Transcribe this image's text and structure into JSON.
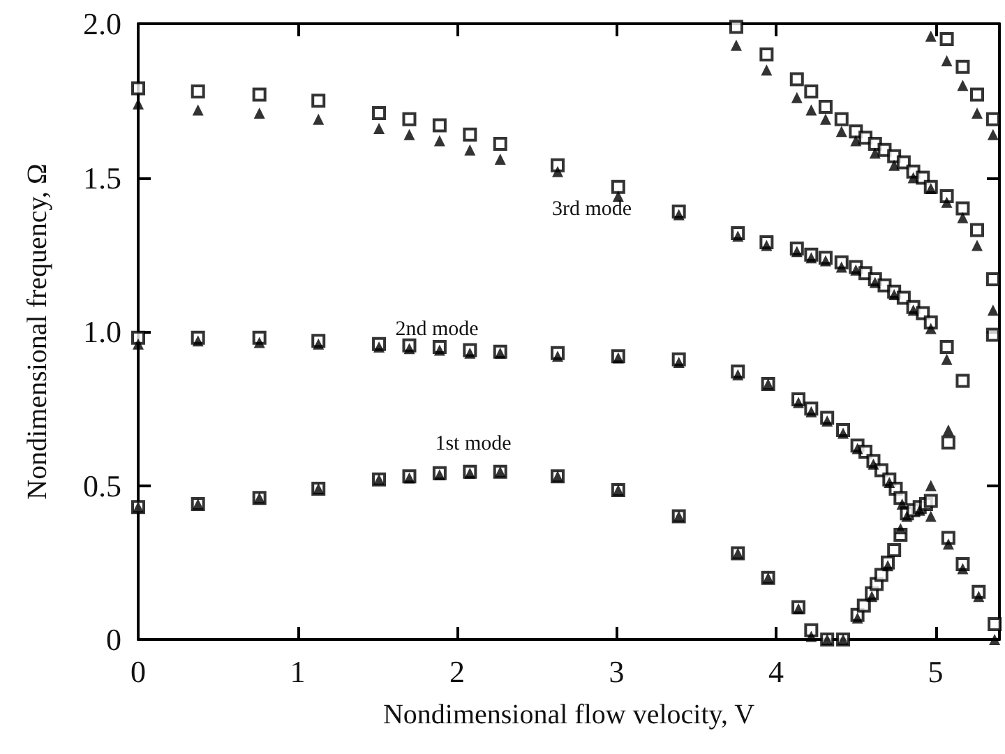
{
  "chart_data": {
    "type": "scatter",
    "xlabel": "Nondimensional flow velocity, V",
    "ylabel": "Nondimensional frequency, Ω",
    "xlim": [
      0,
      5.4
    ],
    "xticks": [
      0,
      1,
      2,
      3,
      4,
      5
    ],
    "ylim": [
      0,
      2
    ],
    "yticks": [
      0,
      {
        "value": 0.5,
        "label": "0.5"
      },
      {
        "value": 1,
        "label": "1.0"
      },
      {
        "value": 1.5,
        "label": "1.5"
      },
      {
        "value": 2,
        "label": "2.0"
      }
    ],
    "grid": false,
    "annotations": [
      "3rd mode",
      "2nd mode",
      "1st mode"
    ],
    "series": [
      {
        "color": "#000000",
        "marker": "square",
        "x": [
          0,
          0.375,
          0.76,
          1.13,
          1.51,
          1.7,
          1.89,
          2.08,
          2.27,
          2.63,
          3.01,
          3.39,
          3.76,
          3.94,
          4.13,
          4.22,
          4.31,
          4.41,
          4.5,
          4.56,
          4.62,
          4.68,
          4.74,
          4.8,
          4.86,
          4.92,
          4.97,
          5.07,
          5.17,
          5.36,
          0,
          0.375,
          0.76,
          1.13,
          1.51,
          1.7,
          1.89,
          2.08,
          2.27,
          2.63,
          3.01,
          3.39,
          3.76,
          3.95,
          4.14,
          4.22,
          4.32,
          4.42,
          4.51,
          4.56,
          4.61,
          4.66,
          4.71,
          4.75,
          4.78,
          0,
          0.375,
          0.76,
          1.13,
          1.51,
          1.7,
          1.89,
          2.08,
          2.27,
          2.63,
          3.01,
          3.39,
          3.76,
          3.95,
          4.14,
          4.22,
          4.32,
          4.42,
          4.51,
          4.55,
          4.6,
          4.63,
          4.66,
          4.7,
          4.74,
          4.78,
          4.82,
          4.86,
          4.9,
          4.94,
          4.97,
          5.08,
          5.08,
          5.17,
          5.27,
          5.37,
          3.75,
          3.94,
          4.13,
          4.22,
          4.31,
          4.41,
          4.5,
          4.56,
          4.62,
          4.68,
          4.74,
          4.8,
          4.86,
          4.92,
          4.97,
          5.07,
          5.17,
          5.26,
          5.36,
          5.07,
          5.17,
          5.26,
          5.36
        ],
        "values": [
          1.79,
          1.78,
          1.77,
          1.75,
          1.71,
          1.69,
          1.67,
          1.64,
          1.61,
          1.54,
          1.47,
          1.39,
          1.32,
          1.29,
          1.27,
          1.25,
          1.24,
          1.225,
          1.21,
          1.19,
          1.17,
          1.15,
          1.13,
          1.11,
          1.08,
          1.06,
          1.03,
          0.95,
          0.84,
          0.99,
          0.98,
          0.98,
          0.98,
          0.97,
          0.96,
          0.955,
          0.95,
          0.94,
          0.935,
          0.93,
          0.92,
          0.91,
          0.87,
          0.83,
          0.78,
          0.75,
          0.72,
          0.68,
          0.63,
          0.61,
          0.58,
          0.55,
          0.52,
          0.49,
          0.46,
          0.43,
          0.44,
          0.46,
          0.49,
          0.52,
          0.53,
          0.54,
          0.545,
          0.545,
          0.53,
          0.485,
          0.4,
          0.28,
          0.2,
          0.105,
          0.03,
          0,
          0,
          0.08,
          0.11,
          0.15,
          0.18,
          0.21,
          0.25,
          0.29,
          0.34,
          0.41,
          0.42,
          0.43,
          0.44,
          0.45,
          0.64,
          0.33,
          0.245,
          0.155,
          0.05,
          1.99,
          1.9,
          1.82,
          1.78,
          1.73,
          1.69,
          1.65,
          1.63,
          1.61,
          1.59,
          1.57,
          1.55,
          1.52,
          1.5,
          1.47,
          1.44,
          1.4,
          1.33,
          1.17,
          1.95,
          1.86,
          1.77,
          1.69
        ]
      },
      {
        "color": "#000000",
        "marker": "triangle",
        "x": [
          0,
          0.375,
          0.76,
          1.13,
          1.51,
          1.7,
          1.89,
          2.08,
          2.27,
          2.63,
          3.01,
          3.39,
          3.76,
          3.94,
          4.13,
          4.22,
          4.31,
          4.41,
          4.5,
          4.62,
          4.74,
          4.86,
          4.97,
          5.07,
          0,
          0.375,
          0.76,
          1.13,
          1.51,
          1.7,
          1.89,
          2.08,
          2.27,
          2.63,
          3.01,
          3.39,
          3.76,
          3.95,
          4.14,
          4.22,
          4.32,
          4.42,
          4.51,
          4.61,
          4.71,
          4.79,
          0,
          0.375,
          0.76,
          1.13,
          1.51,
          1.7,
          1.89,
          2.08,
          2.27,
          2.63,
          3.01,
          3.39,
          3.76,
          3.95,
          4.14,
          4.22,
          4.32,
          4.42,
          4.51,
          4.6,
          4.7,
          4.78,
          4.82,
          4.9,
          4.97,
          4.97,
          5.08,
          5.08,
          5.17,
          5.27,
          5.37,
          3.75,
          3.94,
          4.13,
          4.22,
          4.31,
          4.41,
          4.5,
          4.62,
          4.74,
          4.86,
          4.97,
          5.07,
          5.17,
          5.26,
          5.36,
          4.97,
          5.07,
          5.17,
          5.26,
          5.36
        ],
        "values": [
          1.74,
          1.72,
          1.71,
          1.69,
          1.66,
          1.64,
          1.62,
          1.59,
          1.56,
          1.52,
          1.44,
          1.38,
          1.31,
          1.28,
          1.26,
          1.24,
          1.23,
          1.21,
          1.2,
          1.16,
          1.12,
          1.07,
          1.01,
          0.91,
          0.96,
          0.97,
          0.965,
          0.96,
          0.95,
          0.945,
          0.94,
          0.93,
          0.93,
          0.92,
          0.915,
          0.9,
          0.86,
          0.83,
          0.77,
          0.74,
          0.71,
          0.67,
          0.62,
          0.57,
          0.51,
          0.44,
          0.43,
          0.44,
          0.46,
          0.49,
          0.52,
          0.525,
          0.535,
          0.54,
          0.545,
          0.53,
          0.485,
          0.4,
          0.28,
          0.2,
          0.1,
          0.01,
          0,
          0,
          0.07,
          0.14,
          0.24,
          0.36,
          0.4,
          0.42,
          0.5,
          0.4,
          0.68,
          0.31,
          0.23,
          0.14,
          0,
          1.93,
          1.85,
          1.76,
          1.72,
          1.69,
          1.65,
          1.62,
          1.58,
          1.54,
          1.5,
          1.465,
          1.42,
          1.37,
          1.28,
          1.07,
          1.96,
          1.88,
          1.8,
          1.71,
          1.64
        ]
      }
    ]
  }
}
